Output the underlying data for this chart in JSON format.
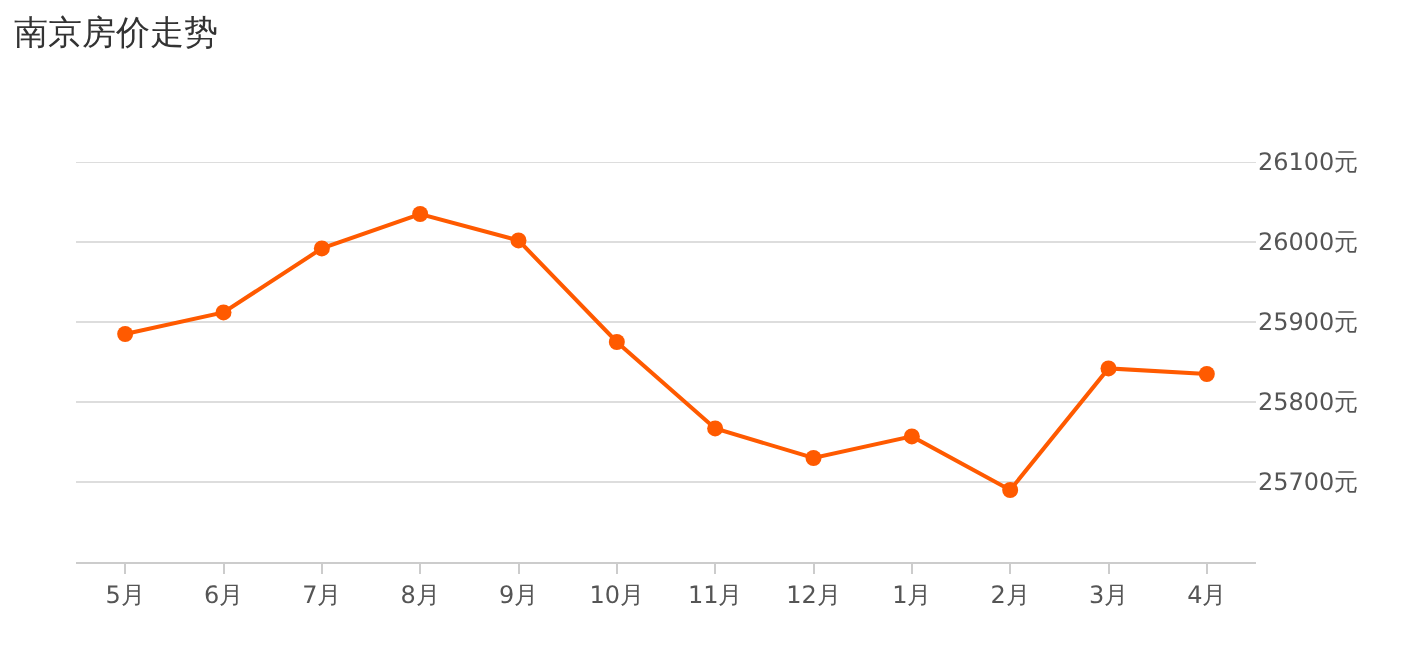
{
  "chart_data": {
    "type": "line",
    "title": "南京房价走势",
    "categories": [
      "5月",
      "6月",
      "7月",
      "8月",
      "9月",
      "10月",
      "11月",
      "12月",
      "1月",
      "2月",
      "3月",
      "4月"
    ],
    "series": [
      {
        "color": "#ff5a00",
        "values": [
          25885,
          25912,
          25992,
          26035,
          26002,
          25875,
          25767,
          25730,
          25757,
          25690,
          25842,
          25835
        ]
      }
    ],
    "ylim": [
      25600,
      26100
    ],
    "yticks": [
      {
        "value": 25600,
        "label": null
      },
      {
        "value": 25700,
        "label": "25700元"
      },
      {
        "value": 25800,
        "label": "25800元"
      },
      {
        "value": 25900,
        "label": "25900元"
      },
      {
        "value": 26000,
        "label": "26000元"
      },
      {
        "value": 26100,
        "label": "26100元"
      }
    ],
    "grid": "y",
    "marker": "circle",
    "line_style": "solid"
  }
}
